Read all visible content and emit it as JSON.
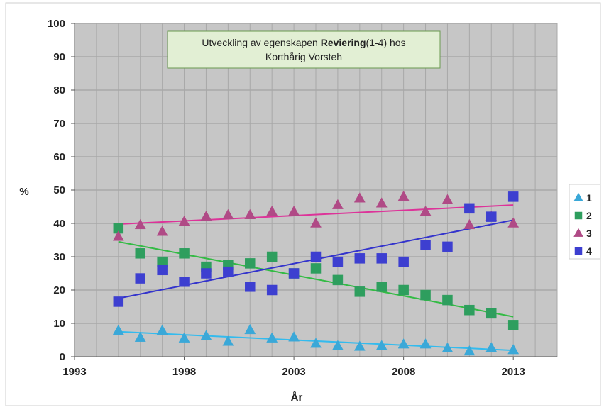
{
  "chart_data": {
    "type": "scatter",
    "title_lines": [
      {
        "pre": "Utveckling av egenskapen ",
        "bold": "Reviering",
        "post": "(1-4) hos"
      },
      {
        "pre": "Korthårig Vorsteh",
        "bold": "",
        "post": ""
      }
    ],
    "xlabel": "År",
    "ylabel": "%",
    "xlim": [
      1993,
      2015
    ],
    "ylim": [
      0,
      100
    ],
    "x_ticks": [
      "1993",
      "1998",
      "2003",
      "2008",
      "2013"
    ],
    "y_ticks": [
      "0",
      "10",
      "20",
      "30",
      "40",
      "50",
      "60",
      "70",
      "80",
      "90",
      "100"
    ],
    "grid": true,
    "legend_position": "right",
    "series": [
      {
        "name": "1",
        "marker": "triangle",
        "color": "#3aa8d8",
        "trend_color": "#33bbee",
        "x": [
          1995,
          1996,
          1997,
          1998,
          1999,
          2000,
          2001,
          2002,
          2003,
          2004,
          2005,
          2006,
          2007,
          2008,
          2009,
          2010,
          2011,
          2012,
          2013
        ],
        "y": [
          7.8,
          5.7,
          7.8,
          5.5,
          6.2,
          4.5,
          8.0,
          5.5,
          5.8,
          3.9,
          3.2,
          3.0,
          3.2,
          3.7,
          3.7,
          2.5,
          1.6,
          2.6,
          2.0
        ],
        "trend": [
          [
            1995,
            7.5
          ],
          [
            2013,
            1.9
          ]
        ]
      },
      {
        "name": "2",
        "marker": "square",
        "color": "#2e9e5e",
        "trend_color": "#33bb44",
        "x": [
          1995,
          1996,
          1997,
          1998,
          1999,
          2000,
          2001,
          2002,
          2003,
          2004,
          2005,
          2006,
          2007,
          2008,
          2009,
          2010,
          2011,
          2012,
          2013
        ],
        "y": [
          38.5,
          31.0,
          28.5,
          31.0,
          27.0,
          27.5,
          28.0,
          30.0,
          25.0,
          26.5,
          23.0,
          19.5,
          21.0,
          20.0,
          18.5,
          17.0,
          14.0,
          13.0,
          9.5
        ],
        "trend": [
          [
            1995,
            34.5
          ],
          [
            2013,
            12.0
          ]
        ]
      },
      {
        "name": "3",
        "marker": "triangle",
        "color": "#b04a86",
        "trend_color": "#dd3399",
        "x": [
          1995,
          1996,
          1997,
          1998,
          1999,
          2000,
          2001,
          2002,
          2003,
          2004,
          2005,
          2006,
          2007,
          2008,
          2009,
          2010,
          2011,
          2012,
          2013
        ],
        "y": [
          36.0,
          39.5,
          37.5,
          40.5,
          42.0,
          42.5,
          42.5,
          43.5,
          43.5,
          40.0,
          45.5,
          47.5,
          46.0,
          48.0,
          43.5,
          47.0,
          39.5,
          42.0,
          40.0
        ],
        "trend": [
          [
            1995,
            39.8
          ],
          [
            2013,
            45.5
          ]
        ]
      },
      {
        "name": "4",
        "marker": "square",
        "color": "#3d3fd0",
        "trend_color": "#3333cc",
        "x": [
          1995,
          1996,
          1997,
          1998,
          1999,
          2000,
          2001,
          2002,
          2003,
          2004,
          2005,
          2006,
          2007,
          2008,
          2009,
          2010,
          2011,
          2012,
          2013
        ],
        "y": [
          16.5,
          23.5,
          26.0,
          22.5,
          25.0,
          25.5,
          21.0,
          20.0,
          25.0,
          30.0,
          28.5,
          29.5,
          29.5,
          28.5,
          33.5,
          33.0,
          44.5,
          42.0,
          48.0
        ],
        "trend": [
          [
            1995,
            17.5
          ],
          [
            2013,
            41.0
          ]
        ]
      }
    ]
  }
}
